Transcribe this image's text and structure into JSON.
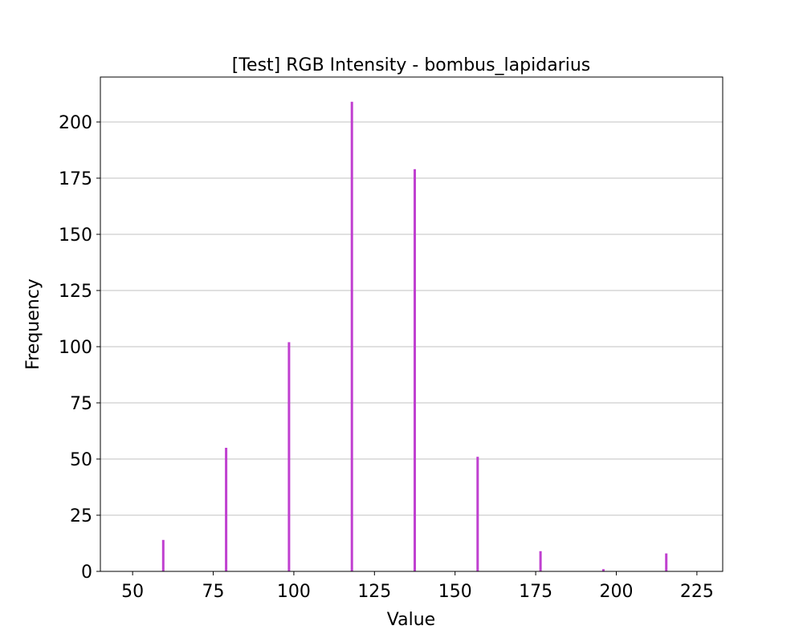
{
  "chart_data": {
    "type": "bar",
    "title": "[Test] RGB Intensity - bombus_lapidarius",
    "xlabel": "Value",
    "ylabel": "Frequency",
    "xlim": [
      40,
      233
    ],
    "ylim": [
      0,
      220
    ],
    "xticks": [
      50,
      75,
      100,
      125,
      150,
      175,
      200,
      225
    ],
    "yticks": [
      0,
      25,
      50,
      75,
      100,
      125,
      150,
      175,
      200
    ],
    "grid": {
      "axis": "y",
      "color": "#c0c0c0"
    },
    "bar_color": "#c040d0",
    "x": [
      59.5,
      79,
      98.5,
      118,
      137.5,
      157,
      176.5,
      196,
      215.5
    ],
    "values": [
      14,
      55,
      102,
      209,
      179,
      51,
      9,
      1,
      8
    ]
  }
}
